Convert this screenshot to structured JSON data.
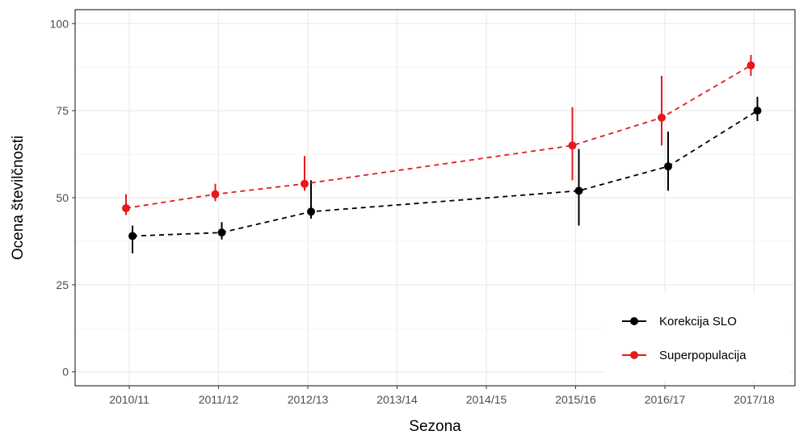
{
  "chart_data": {
    "type": "line",
    "title": "",
    "xlabel": "Sezona",
    "ylabel": "Ocena številčnosti",
    "categories": [
      "2010/11",
      "2011/12",
      "2012/13",
      "2013/14",
      "2014/15",
      "2015/16",
      "2016/17",
      "2017/18"
    ],
    "ylim": [
      -4,
      104
    ],
    "yticks": [
      0,
      25,
      50,
      75,
      100
    ],
    "grid": true,
    "legend_position": "bottom-right",
    "series": [
      {
        "name": "Korekcija SLO",
        "color": "#000000",
        "line_style": "dashed",
        "points": [
          {
            "category": "2010/11",
            "y": 39,
            "low": 34,
            "high": 42
          },
          {
            "category": "2011/12",
            "y": 40,
            "low": 38,
            "high": 43
          },
          {
            "category": "2012/13",
            "y": 46,
            "low": 44,
            "high": 55
          },
          {
            "category": "2015/16",
            "y": 52,
            "low": 42,
            "high": 64
          },
          {
            "category": "2016/17",
            "y": 59,
            "low": 52,
            "high": 69
          },
          {
            "category": "2017/18",
            "y": 75,
            "low": 72,
            "high": 79
          }
        ]
      },
      {
        "name": "Superpopulacija",
        "color": "#e41a1c",
        "line_style": "dashed",
        "points": [
          {
            "category": "2010/11",
            "y": 47,
            "low": 45,
            "high": 51
          },
          {
            "category": "2011/12",
            "y": 51,
            "low": 49,
            "high": 54
          },
          {
            "category": "2012/13",
            "y": 54,
            "low": 52,
            "high": 62
          },
          {
            "category": "2015/16",
            "y": 65,
            "low": 55,
            "high": 76
          },
          {
            "category": "2016/17",
            "y": 73,
            "low": 65,
            "high": 85
          },
          {
            "category": "2017/18",
            "y": 88,
            "low": 85,
            "high": 91
          }
        ]
      }
    ]
  }
}
